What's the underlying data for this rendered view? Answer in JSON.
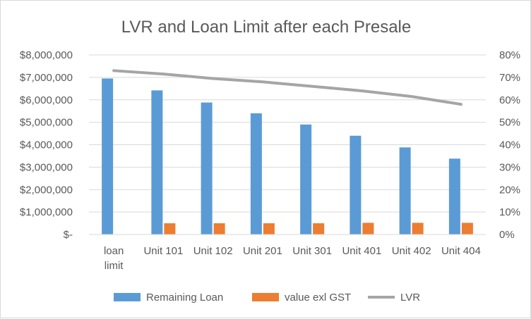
{
  "chart_data": {
    "type": "bar",
    "title": "LVR and Loan Limit after each Presale",
    "categories": [
      "loan limit",
      "Unit 101",
      "Unit 102",
      "Unit 201",
      "Unit 301",
      "Unit 401",
      "Unit 402",
      "Unit 404"
    ],
    "series": [
      {
        "name": "Remaining Loan",
        "type": "bar",
        "axis": "left",
        "color": "#5b9bd5",
        "values": [
          6950000,
          6420000,
          5880000,
          5400000,
          4900000,
          4400000,
          3880000,
          3380000
        ]
      },
      {
        "name": "value exl GST",
        "type": "bar",
        "axis": "left",
        "color": "#ed7d31",
        "values": [
          0,
          500000,
          500000,
          500000,
          500000,
          520000,
          520000,
          520000
        ]
      },
      {
        "name": "LVR",
        "type": "line",
        "axis": "right",
        "color": "#a5a5a5",
        "values": [
          0.73,
          0.715,
          0.695,
          0.68,
          0.66,
          0.64,
          0.615,
          0.58
        ]
      }
    ],
    "y_left": {
      "min": 0,
      "max": 8000000,
      "ticks": [
        0,
        1000000,
        2000000,
        3000000,
        4000000,
        5000000,
        6000000,
        7000000,
        8000000
      ],
      "tick_labels": [
        "$-",
        "$1,000,000",
        "$2,000,000",
        "$3,000,000",
        "$4,000,000",
        "$5,000,000",
        "$6,000,000",
        "$7,000,000",
        "$8,000,000"
      ]
    },
    "y_right": {
      "min": 0,
      "max": 0.8,
      "ticks": [
        0,
        0.1,
        0.2,
        0.3,
        0.4,
        0.5,
        0.6,
        0.7,
        0.8
      ],
      "tick_labels": [
        "0%",
        "10%",
        "20%",
        "30%",
        "40%",
        "50%",
        "60%",
        "70%",
        "80%"
      ]
    },
    "grid": true,
    "legend_position": "bottom"
  }
}
